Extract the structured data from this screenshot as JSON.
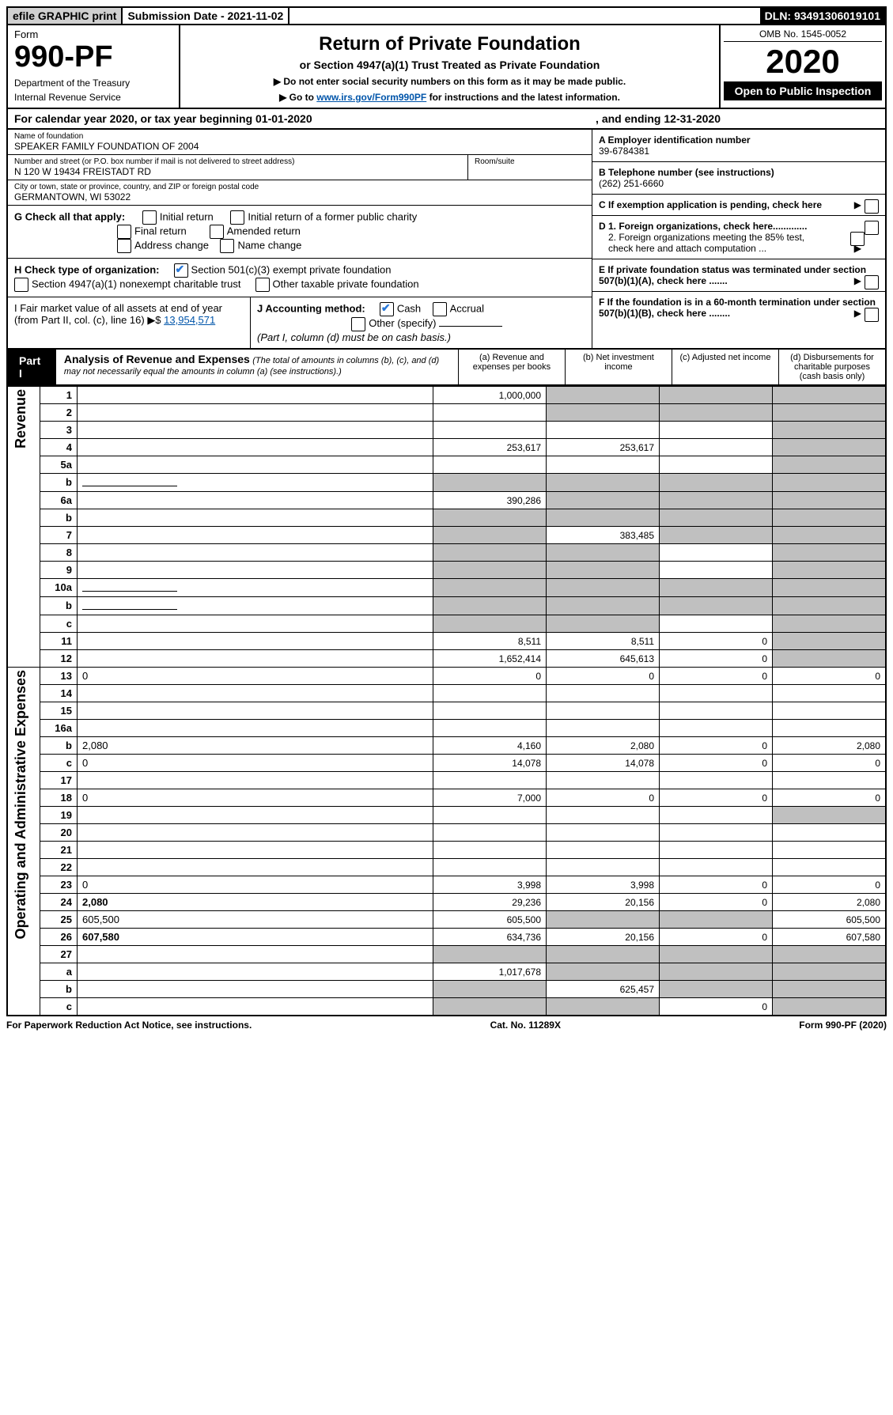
{
  "top": {
    "efile": "efile GRAPHIC print",
    "submission": "Submission Date - 2021-11-02",
    "dln": "DLN: 93491306019101"
  },
  "header": {
    "form_label": "Form",
    "form_no": "990-PF",
    "dept1": "Department of the Treasury",
    "dept2": "Internal Revenue Service",
    "title": "Return of Private Foundation",
    "sub1": "or Section 4947(a)(1) Trust Treated as Private Foundation",
    "sub2a": "▶ Do not enter social security numbers on this form as it may be made public.",
    "sub2b": "▶ Go to ",
    "link": "www.irs.gov/Form990PF",
    "sub2c": " for instructions and the latest information.",
    "omb": "OMB No. 1545-0052",
    "year": "2020",
    "open": "Open to Public Inspection"
  },
  "cal": {
    "text1": "For calendar year 2020, or tax year beginning 01-01-2020",
    "text2": ", and ending 12-31-2020"
  },
  "info": {
    "name_lbl": "Name of foundation",
    "name": "SPEAKER FAMILY FOUNDATION OF 2004",
    "addr_lbl": "Number and street (or P.O. box number if mail is not delivered to street address)",
    "addr": "N 120 W 19434 FREISTADT RD",
    "room_lbl": "Room/suite",
    "city_lbl": "City or town, state or province, country, and ZIP or foreign postal code",
    "city": "GERMANTOWN, WI  53022",
    "a_lbl": "A Employer identification number",
    "a_val": "39-6784381",
    "b_lbl": "B Telephone number (see instructions)",
    "b_val": "(262) 251-6660",
    "c_lbl": "C If exemption application is pending, check here",
    "d1": "D 1. Foreign organizations, check here.............",
    "d2": "2. Foreign organizations meeting the 85% test, check here and attach computation ...",
    "e": "E  If private foundation status was terminated under section 507(b)(1)(A), check here .......",
    "f": "F  If the foundation is in a 60-month termination under section 507(b)(1)(B), check here ........"
  },
  "g": {
    "label": "G Check all that apply:",
    "initial": "Initial return",
    "initial_former": "Initial return of a former public charity",
    "final": "Final return",
    "amended": "Amended return",
    "addr_change": "Address change",
    "name_change": "Name change"
  },
  "h": {
    "label": "H Check type of organization:",
    "sec501": "Section 501(c)(3) exempt private foundation",
    "sec4947": "Section 4947(a)(1) nonexempt charitable trust",
    "other_tax": "Other taxable private foundation"
  },
  "i": {
    "label": "I Fair market value of all assets at end of year (from Part II, col. (c), line 16) ▶$ ",
    "val": "13,954,571"
  },
  "j": {
    "label": "J Accounting method:",
    "cash": "Cash",
    "accrual": "Accrual",
    "other": "Other (specify)",
    "note": "(Part I, column (d) must be on cash basis.)"
  },
  "part1": {
    "tab": "Part I",
    "title": "Analysis of Revenue and Expenses",
    "note": " (The total of amounts in columns (b), (c), and (d) may not necessarily equal the amounts in column (a) (see instructions).)",
    "col_a": "(a)   Revenue and expenses per books",
    "col_b": "(b)  Net investment income",
    "col_c": "(c)  Adjusted net income",
    "col_d": "(d)  Disbursements for charitable purposes (cash basis only)"
  },
  "sides": {
    "revenue": "Revenue",
    "expenses": "Operating and Administrative Expenses"
  },
  "rows": [
    {
      "n": "1",
      "d": "",
      "a": "1,000,000",
      "b": "",
      "c": "",
      "ga": false,
      "gb": true,
      "gc": true,
      "gd": true
    },
    {
      "n": "2",
      "d": "",
      "a": "",
      "b": "",
      "c": "",
      "ga": false,
      "gb": true,
      "gc": true,
      "gd": true,
      "dots": true
    },
    {
      "n": "3",
      "d": "",
      "a": "",
      "b": "",
      "c": "",
      "ga": false,
      "gb": false,
      "gc": false,
      "gd": true
    },
    {
      "n": "4",
      "d": "",
      "a": "253,617",
      "b": "253,617",
      "c": "",
      "ga": false,
      "gb": false,
      "gc": false,
      "gd": true
    },
    {
      "n": "5a",
      "d": "",
      "a": "",
      "b": "",
      "c": "",
      "ga": false,
      "gb": false,
      "gc": false,
      "gd": true
    },
    {
      "n": "b",
      "d": "",
      "a": "",
      "b": "",
      "c": "",
      "ga": true,
      "gb": true,
      "gc": true,
      "gd": true,
      "blank": true
    },
    {
      "n": "6a",
      "d": "",
      "a": "390,286",
      "b": "",
      "c": "",
      "ga": false,
      "gb": true,
      "gc": true,
      "gd": true
    },
    {
      "n": "b",
      "d": "",
      "a": "",
      "b": "",
      "c": "",
      "ga": true,
      "gb": true,
      "gc": true,
      "gd": true
    },
    {
      "n": "7",
      "d": "",
      "a": "",
      "b": "383,485",
      "c": "",
      "ga": true,
      "gb": false,
      "gc": true,
      "gd": true
    },
    {
      "n": "8",
      "d": "",
      "a": "",
      "b": "",
      "c": "",
      "ga": true,
      "gb": true,
      "gc": false,
      "gd": true
    },
    {
      "n": "9",
      "d": "",
      "a": "",
      "b": "",
      "c": "",
      "ga": true,
      "gb": true,
      "gc": false,
      "gd": true
    },
    {
      "n": "10a",
      "d": "",
      "a": "",
      "b": "",
      "c": "",
      "ga": true,
      "gb": true,
      "gc": true,
      "gd": true,
      "blank": true
    },
    {
      "n": "b",
      "d": "",
      "a": "",
      "b": "",
      "c": "",
      "ga": true,
      "gb": true,
      "gc": true,
      "gd": true,
      "blank": true
    },
    {
      "n": "c",
      "d": "",
      "a": "",
      "b": "",
      "c": "",
      "ga": true,
      "gb": true,
      "gc": false,
      "gd": true
    },
    {
      "n": "11",
      "d": "",
      "a": "8,511",
      "b": "8,511",
      "c": "0",
      "ga": false,
      "gb": false,
      "gc": false,
      "gd": true
    },
    {
      "n": "12",
      "d": "",
      "a": "1,652,414",
      "b": "645,613",
      "c": "0",
      "ga": false,
      "gb": false,
      "gc": false,
      "gd": true,
      "bold": true
    },
    {
      "n": "13",
      "d": "0",
      "a": "0",
      "b": "0",
      "c": "0",
      "ga": false,
      "gb": false,
      "gc": false,
      "gd": false
    },
    {
      "n": "14",
      "d": "",
      "a": "",
      "b": "",
      "c": "",
      "ga": false,
      "gb": false,
      "gc": false,
      "gd": false
    },
    {
      "n": "15",
      "d": "",
      "a": "",
      "b": "",
      "c": "",
      "ga": false,
      "gb": false,
      "gc": false,
      "gd": false
    },
    {
      "n": "16a",
      "d": "",
      "a": "",
      "b": "",
      "c": "",
      "ga": false,
      "gb": false,
      "gc": false,
      "gd": false
    },
    {
      "n": "b",
      "d": "2,080",
      "a": "4,160",
      "b": "2,080",
      "c": "0",
      "ga": false,
      "gb": false,
      "gc": false,
      "gd": false
    },
    {
      "n": "c",
      "d": "0",
      "a": "14,078",
      "b": "14,078",
      "c": "0",
      "ga": false,
      "gb": false,
      "gc": false,
      "gd": false
    },
    {
      "n": "17",
      "d": "",
      "a": "",
      "b": "",
      "c": "",
      "ga": false,
      "gb": false,
      "gc": false,
      "gd": false
    },
    {
      "n": "18",
      "d": "0",
      "a": "7,000",
      "b": "0",
      "c": "0",
      "ga": false,
      "gb": false,
      "gc": false,
      "gd": false
    },
    {
      "n": "19",
      "d": "",
      "a": "",
      "b": "",
      "c": "",
      "ga": false,
      "gb": false,
      "gc": false,
      "gd": true
    },
    {
      "n": "20",
      "d": "",
      "a": "",
      "b": "",
      "c": "",
      "ga": false,
      "gb": false,
      "gc": false,
      "gd": false
    },
    {
      "n": "21",
      "d": "",
      "a": "",
      "b": "",
      "c": "",
      "ga": false,
      "gb": false,
      "gc": false,
      "gd": false
    },
    {
      "n": "22",
      "d": "",
      "a": "",
      "b": "",
      "c": "",
      "ga": false,
      "gb": false,
      "gc": false,
      "gd": false
    },
    {
      "n": "23",
      "d": "0",
      "a": "3,998",
      "b": "3,998",
      "c": "0",
      "ga": false,
      "gb": false,
      "gc": false,
      "gd": false
    },
    {
      "n": "24",
      "d": "2,080",
      "a": "29,236",
      "b": "20,156",
      "c": "0",
      "ga": false,
      "gb": false,
      "gc": false,
      "gd": false,
      "bold": true
    },
    {
      "n": "25",
      "d": "605,500",
      "a": "605,500",
      "b": "",
      "c": "",
      "ga": false,
      "gb": true,
      "gc": true,
      "gd": false
    },
    {
      "n": "26",
      "d": "607,580",
      "a": "634,736",
      "b": "20,156",
      "c": "0",
      "ga": false,
      "gb": false,
      "gc": false,
      "gd": false,
      "bold": true
    },
    {
      "n": "27",
      "d": "",
      "a": "",
      "b": "",
      "c": "",
      "ga": true,
      "gb": true,
      "gc": true,
      "gd": true
    },
    {
      "n": "a",
      "d": "",
      "a": "1,017,678",
      "b": "",
      "c": "",
      "ga": false,
      "gb": true,
      "gc": true,
      "gd": true,
      "bold": true
    },
    {
      "n": "b",
      "d": "",
      "a": "",
      "b": "625,457",
      "c": "",
      "ga": true,
      "gb": false,
      "gc": true,
      "gd": true,
      "bold": true
    },
    {
      "n": "c",
      "d": "",
      "a": "",
      "b": "",
      "c": "0",
      "ga": true,
      "gb": true,
      "gc": false,
      "gd": true,
      "bold": true
    }
  ],
  "footer": {
    "left": "For Paperwork Reduction Act Notice, see instructions.",
    "mid": "Cat. No. 11289X",
    "right": "Form 990-PF (2020)"
  }
}
